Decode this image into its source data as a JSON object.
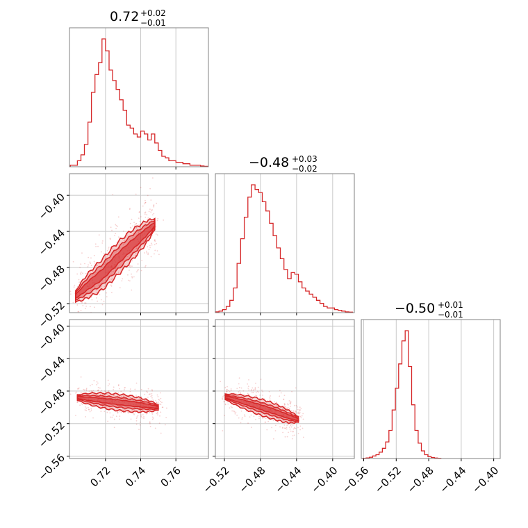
{
  "chart_data": {
    "type": "corner",
    "accent_color": "#d62728",
    "grid": true,
    "params": [
      {
        "title": {
          "median": "0.72",
          "plus": "+0.02",
          "minus": "−0.01"
        },
        "range": [
          0.6995,
          0.7785
        ],
        "ticks": [
          0.72,
          0.74,
          0.76
        ],
        "tick_labels": [
          "0.72",
          "0.74",
          "0.76"
        ],
        "hist_centers": [
          0.701,
          0.703,
          0.705,
          0.707,
          0.709,
          0.711,
          0.713,
          0.715,
          0.717,
          0.719,
          0.721,
          0.723,
          0.725,
          0.727,
          0.729,
          0.731,
          0.733,
          0.735,
          0.737,
          0.739,
          0.741,
          0.743,
          0.745,
          0.747,
          0.749,
          0.751,
          0.753,
          0.755,
          0.757,
          0.759,
          0.761,
          0.763,
          0.765,
          0.767,
          0.769,
          0.771,
          0.773,
          0.775,
          0.777
        ],
        "hist_counts": [
          0.01,
          0.01,
          0.04,
          0.08,
          0.15,
          0.3,
          0.5,
          0.62,
          0.7,
          0.86,
          0.78,
          0.65,
          0.58,
          0.52,
          0.45,
          0.38,
          0.28,
          0.26,
          0.22,
          0.2,
          0.24,
          0.22,
          0.18,
          0.22,
          0.16,
          0.11,
          0.07,
          0.06,
          0.04,
          0.04,
          0.03,
          0.03,
          0.02,
          0.02,
          0.01,
          0.01,
          0.01,
          0.005,
          0.003
        ]
      },
      {
        "title": {
          "median": "−0.48",
          "plus": "+0.03",
          "minus": "−0.02"
        },
        "range": [
          -0.53,
          -0.376
        ],
        "ticks": [
          -0.52,
          -0.48,
          -0.44,
          -0.4
        ],
        "tick_labels": [
          "−0.52",
          "−0.48",
          "−0.44",
          "−0.40"
        ],
        "hist_centers": [
          -0.528,
          -0.524,
          -0.52,
          -0.516,
          -0.512,
          -0.508,
          -0.504,
          -0.5,
          -0.496,
          -0.492,
          -0.488,
          -0.484,
          -0.48,
          -0.476,
          -0.472,
          -0.468,
          -0.464,
          -0.46,
          -0.456,
          -0.452,
          -0.448,
          -0.444,
          -0.44,
          -0.436,
          -0.432,
          -0.428,
          -0.424,
          -0.42,
          -0.416,
          -0.412,
          -0.408,
          -0.404,
          -0.4,
          -0.396,
          -0.392,
          -0.388,
          -0.384,
          -0.38
        ],
        "hist_counts": [
          0.005,
          0.01,
          0.02,
          0.04,
          0.08,
          0.16,
          0.32,
          0.48,
          0.62,
          0.75,
          0.83,
          0.8,
          0.78,
          0.72,
          0.66,
          0.58,
          0.5,
          0.42,
          0.35,
          0.28,
          0.22,
          0.26,
          0.25,
          0.2,
          0.16,
          0.14,
          0.12,
          0.1,
          0.08,
          0.06,
          0.04,
          0.03,
          0.03,
          0.02,
          0.015,
          0.01,
          0.005,
          0.003
        ]
      },
      {
        "title": {
          "median": "−0.50",
          "plus": "+0.01",
          "minus": "−0.01"
        },
        "range": [
          -0.563,
          -0.392
        ],
        "ticks": [
          -0.56,
          -0.52,
          -0.48,
          -0.44,
          -0.4
        ],
        "tick_labels": [
          "−0.56",
          "−0.52",
          "−0.48",
          "−0.44",
          "−0.40"
        ],
        "hist_centers": [
          -0.559,
          -0.555,
          -0.551,
          -0.547,
          -0.543,
          -0.539,
          -0.535,
          -0.531,
          -0.527,
          -0.523,
          -0.519,
          -0.515,
          -0.511,
          -0.507,
          -0.503,
          -0.499,
          -0.495,
          -0.491,
          -0.487,
          -0.483,
          -0.479,
          -0.475,
          -0.471,
          -0.467
        ],
        "hist_counts": [
          0.002,
          0.005,
          0.01,
          0.02,
          0.03,
          0.05,
          0.08,
          0.13,
          0.22,
          0.38,
          0.55,
          0.74,
          0.92,
          1.0,
          0.72,
          0.42,
          0.22,
          0.12,
          0.06,
          0.03,
          0.015,
          0.008,
          0.004,
          0.002
        ]
      }
    ],
    "pairs": [
      {
        "row": 1,
        "col": 0,
        "correlation": "strong positive",
        "contour_centerline": [
          [
            0.703,
            -0.512
          ],
          [
            0.71,
            -0.5
          ],
          [
            0.718,
            -0.488
          ],
          [
            0.726,
            -0.472
          ],
          [
            0.734,
            -0.457
          ],
          [
            0.742,
            -0.443
          ],
          [
            0.748,
            -0.432
          ]
        ],
        "contour_halfwidths": [
          0.006,
          0.012,
          0.018
        ]
      },
      {
        "row": 2,
        "col": 0,
        "correlation": "weak",
        "contour_centerline": [
          [
            0.704,
            -0.488
          ],
          [
            0.716,
            -0.491
          ],
          [
            0.728,
            -0.494
          ],
          [
            0.74,
            -0.497
          ],
          [
            0.75,
            -0.5
          ]
        ],
        "contour_halfwidths": [
          0.003,
          0.006,
          0.01
        ]
      },
      {
        "row": 2,
        "col": 1,
        "correlation": "moderate negative",
        "contour_centerline": [
          [
            -0.519,
            -0.487
          ],
          [
            -0.5,
            -0.493
          ],
          [
            -0.482,
            -0.499
          ],
          [
            -0.465,
            -0.505
          ],
          [
            -0.45,
            -0.511
          ],
          [
            -0.438,
            -0.515
          ]
        ],
        "contour_halfwidths": [
          0.003,
          0.006,
          0.01
        ]
      }
    ]
  }
}
